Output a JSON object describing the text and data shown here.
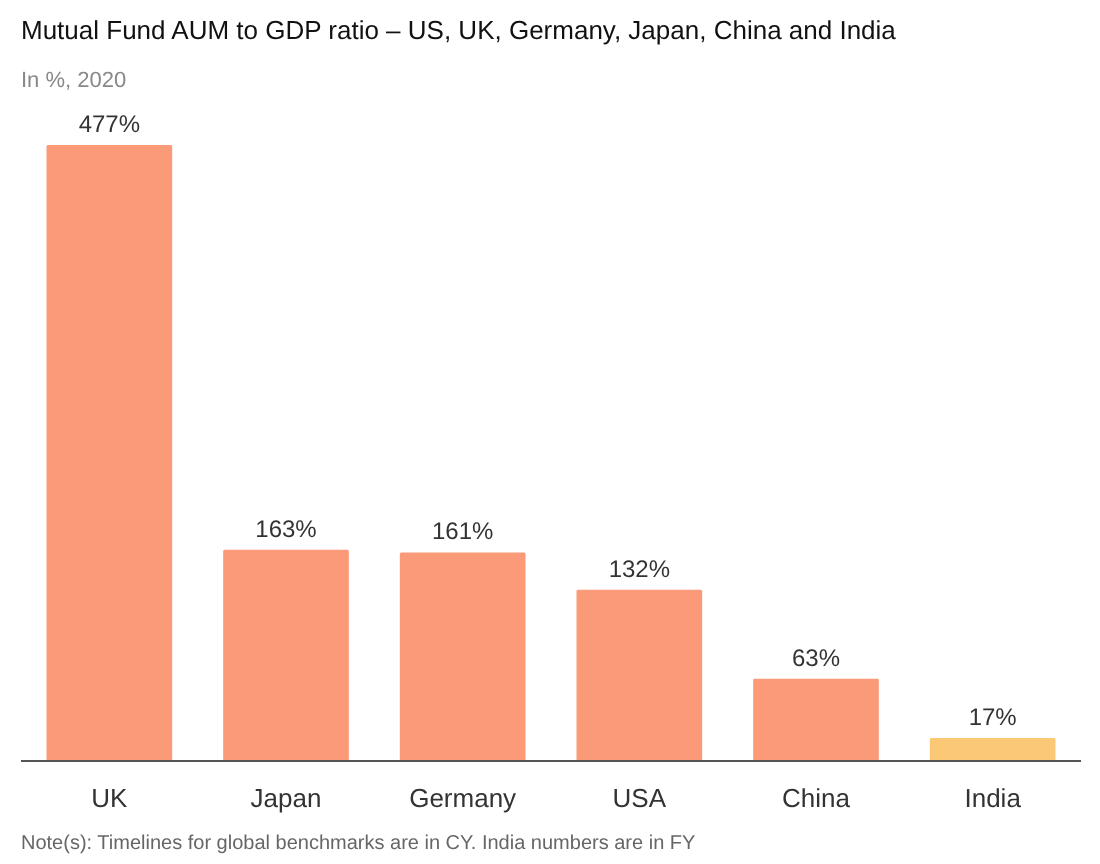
{
  "chart_data": {
    "type": "bar",
    "title": "Mutual Fund AUM to GDP ratio – US, UK, Germany, Japan, China and India",
    "subtitle": "In %, 2020",
    "categories": [
      "UK",
      "Japan",
      "Germany",
      "USA",
      "China",
      "India"
    ],
    "values": [
      477,
      163,
      161,
      132,
      63,
      17
    ],
    "value_labels": [
      "477%",
      "163%",
      "161%",
      "132%",
      "63%",
      "17%"
    ],
    "colors": [
      "#fa9a78",
      "#fa9a78",
      "#fa9a78",
      "#fa9a78",
      "#fa9a78",
      "#fbc875"
    ],
    "annotations": [
      "Note(s):  Timelines for global benchmarks are in CY. India numbers are in FY"
    ],
    "grid": false
  }
}
